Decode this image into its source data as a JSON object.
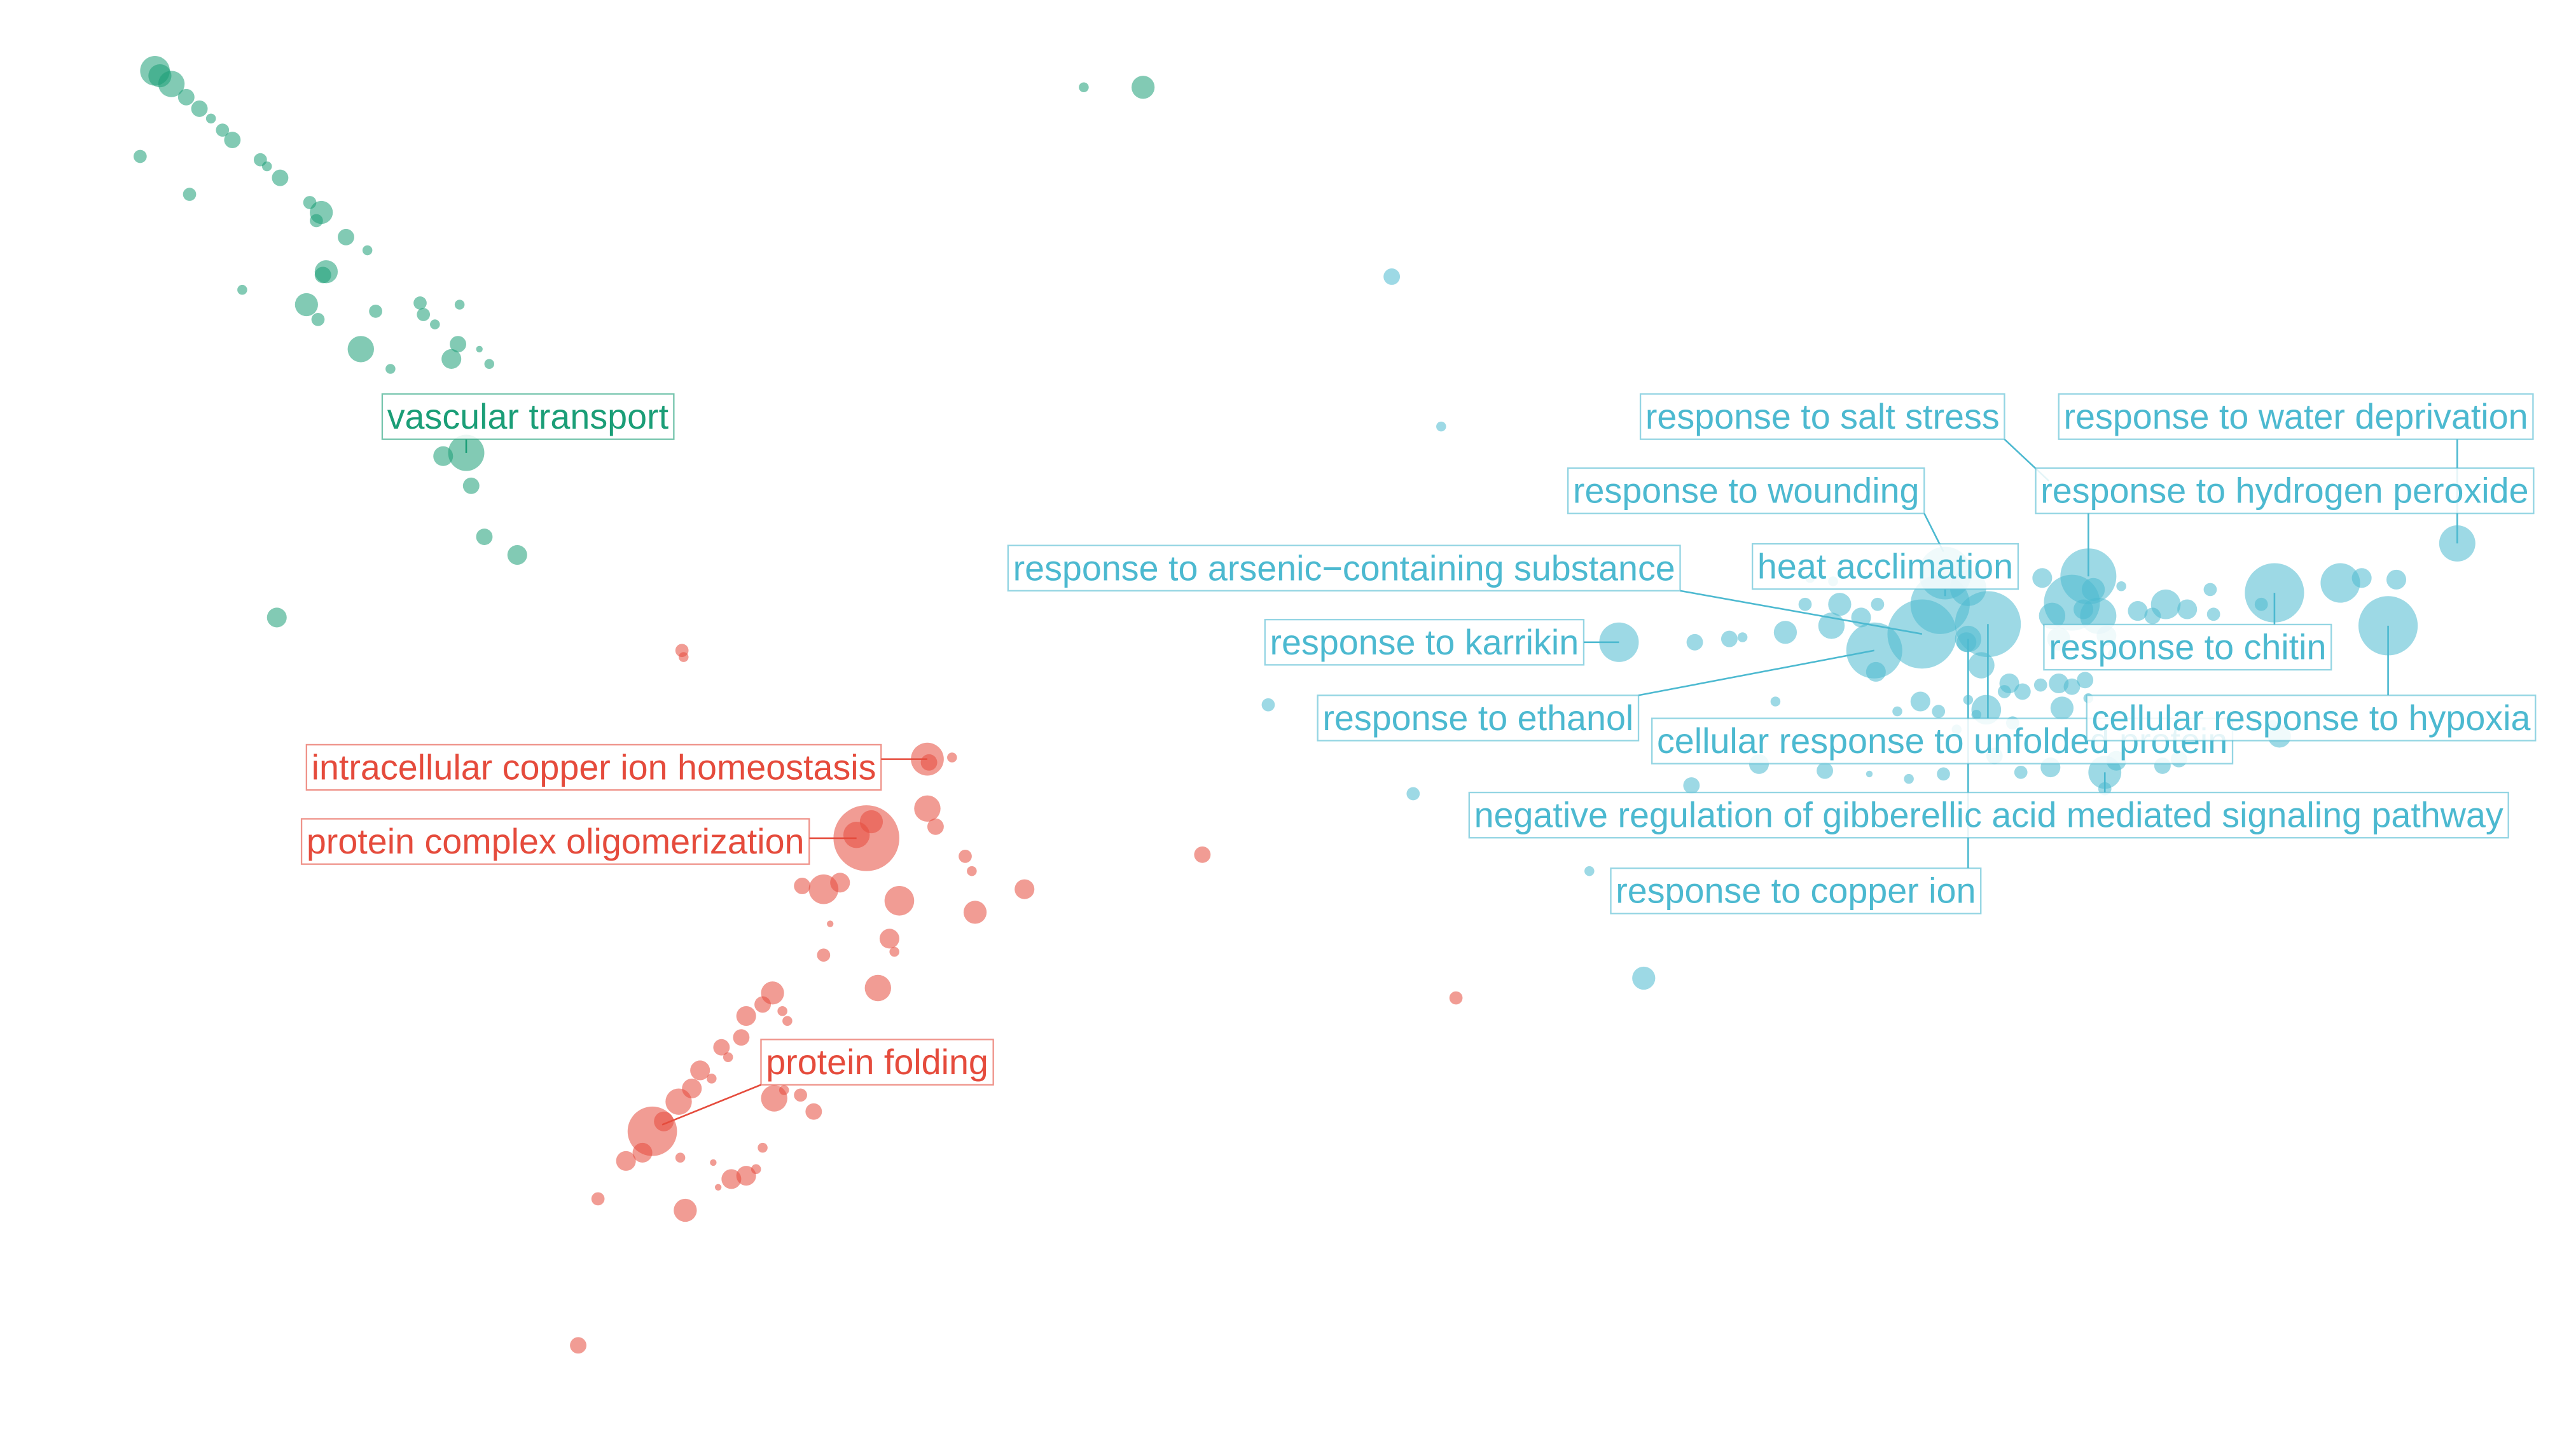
{
  "chart_data": {
    "type": "scatter",
    "title": "",
    "xlabel": "",
    "ylabel": "",
    "xlim": [
      0,
      1564
    ],
    "ylim": [
      0,
      869
    ],
    "grid": false,
    "legend": "none",
    "colors": {
      "green": "#1b9e77",
      "red": "#e54b3c",
      "blue": "#4cb9d0"
    },
    "series": [
      {
        "color": "#1b9e77",
        "points": [
          [
            94,
            43,
            9
          ],
          [
            97,
            46,
            7
          ],
          [
            104,
            51,
            8
          ],
          [
            113,
            59,
            5
          ],
          [
            121,
            66,
            5
          ],
          [
            128,
            72,
            3
          ],
          [
            135,
            79,
            4
          ],
          [
            141,
            85,
            5
          ],
          [
            85,
            95,
            4
          ],
          [
            158,
            97,
            4
          ],
          [
            162,
            101,
            3
          ],
          [
            170,
            108,
            5
          ],
          [
            115,
            118,
            4
          ],
          [
            188,
            123,
            4
          ],
          [
            195,
            129,
            7
          ],
          [
            192,
            134,
            4
          ],
          [
            210,
            144,
            5
          ],
          [
            223,
            152,
            3
          ],
          [
            198,
            165,
            7
          ],
          [
            196,
            167,
            5
          ],
          [
            147,
            176,
            3
          ],
          [
            186,
            185,
            7
          ],
          [
            193,
            194,
            4
          ],
          [
            228,
            189,
            4
          ],
          [
            255,
            184,
            4
          ],
          [
            257,
            191,
            4
          ],
          [
            279,
            185,
            3
          ],
          [
            264,
            197,
            3
          ],
          [
            219,
            212,
            8
          ],
          [
            237,
            224,
            3
          ],
          [
            278,
            209,
            5
          ],
          [
            291,
            212,
            2
          ],
          [
            297,
            221,
            3
          ],
          [
            274,
            218,
            6
          ],
          [
            269,
            277,
            6
          ],
          [
            283,
            275,
            11
          ],
          [
            286,
            295,
            5
          ],
          [
            294,
            326,
            5
          ],
          [
            314,
            337,
            6
          ],
          [
            168,
            375,
            6
          ],
          [
            658,
            53,
            3
          ],
          [
            694,
            53,
            7
          ]
        ],
        "labels": [
          {
            "text": "vascular transport",
            "lx": 235,
            "ly": 253,
            "px": 283,
            "py": 275
          }
        ]
      },
      {
        "color": "#e54b3c",
        "points": [
          [
            414,
            395,
            4
          ],
          [
            563,
            461,
            10
          ],
          [
            564,
            463,
            5
          ],
          [
            578,
            460,
            3
          ],
          [
            526,
            509,
            20
          ],
          [
            520,
            507,
            8
          ],
          [
            529,
            499,
            7
          ],
          [
            563,
            491,
            8
          ],
          [
            568,
            502,
            5
          ],
          [
            586,
            520,
            4
          ],
          [
            590,
            529,
            3
          ],
          [
            500,
            540,
            9
          ],
          [
            487,
            538,
            5
          ],
          [
            510,
            536,
            6
          ],
          [
            546,
            547,
            9
          ],
          [
            592,
            554,
            7
          ],
          [
            622,
            540,
            6
          ],
          [
            730,
            519,
            5
          ],
          [
            540,
            570,
            6
          ],
          [
            543,
            578,
            3
          ],
          [
            504,
            561,
            2
          ],
          [
            500,
            580,
            4
          ],
          [
            533,
            600,
            8
          ],
          [
            469,
            603,
            7
          ],
          [
            463,
            610,
            5
          ],
          [
            475,
            614,
            3
          ],
          [
            478,
            620,
            3
          ],
          [
            453,
            617,
            6
          ],
          [
            450,
            630,
            5
          ],
          [
            438,
            636,
            5
          ],
          [
            442,
            642,
            3
          ],
          [
            425,
            650,
            6
          ],
          [
            432,
            655,
            3
          ],
          [
            420,
            661,
            6
          ],
          [
            412,
            669,
            8
          ],
          [
            470,
            667,
            8
          ],
          [
            476,
            662,
            3
          ],
          [
            486,
            665,
            4
          ],
          [
            494,
            675,
            5
          ],
          [
            396,
            687,
            15
          ],
          [
            403,
            681,
            6
          ],
          [
            390,
            700,
            6
          ],
          [
            380,
            705,
            6
          ],
          [
            413,
            703,
            3
          ],
          [
            463,
            697,
            3
          ],
          [
            459,
            710,
            3
          ],
          [
            444,
            716,
            6
          ],
          [
            453,
            714,
            6
          ],
          [
            433,
            706,
            2
          ],
          [
            436,
            721,
            2
          ],
          [
            416,
            735,
            7
          ],
          [
            363,
            728,
            4
          ],
          [
            351,
            817,
            5
          ],
          [
            884,
            606,
            4
          ],
          [
            415,
            399,
            3
          ]
        ],
        "labels": [
          {
            "text": "intracellular copper ion homeostasis",
            "lx": 189,
            "ly": 466,
            "px": 563,
            "py": 461
          },
          {
            "text": "protein complex oligomerization",
            "lx": 186,
            "ly": 511,
            "px": 520,
            "py": 509
          },
          {
            "text": "protein folding",
            "lx": 465,
            "ly": 645,
            "px": 402,
            "py": 683
          }
        ]
      },
      {
        "color": "#4cb9d0",
        "points": [
          [
            845,
            168,
            5
          ],
          [
            875,
            259,
            3
          ],
          [
            770,
            428,
            4
          ],
          [
            858,
            482,
            4
          ],
          [
            965,
            529,
            3
          ],
          [
            998,
            594,
            7
          ],
          [
            983,
            390,
            12
          ],
          [
            1029,
            390,
            5
          ],
          [
            1050,
            388,
            5
          ],
          [
            1058,
            387,
            3
          ],
          [
            1084,
            384,
            7
          ],
          [
            1078,
            426,
            3
          ],
          [
            1096,
            367,
            4
          ],
          [
            1099,
            351,
            3
          ],
          [
            1112,
            380,
            8
          ],
          [
            1117,
            367,
            7
          ],
          [
            1113,
            353,
            3
          ],
          [
            1130,
            375,
            6
          ],
          [
            1138,
            395,
            17
          ],
          [
            1139,
            408,
            6
          ],
          [
            1140,
            367,
            4
          ],
          [
            1167,
            385,
            21
          ],
          [
            1178,
            367,
            18
          ],
          [
            1181,
            348,
            16
          ],
          [
            1195,
            357,
            11
          ],
          [
            1207,
            379,
            20
          ],
          [
            1195,
            388,
            8
          ],
          [
            1203,
            404,
            8
          ],
          [
            1194,
            390,
            6
          ],
          [
            1166,
            426,
            6
          ],
          [
            1152,
            432,
            3
          ],
          [
            1177,
            432,
            4
          ],
          [
            1206,
            431,
            9
          ],
          [
            1217,
            420,
            4
          ],
          [
            1220,
            415,
            6
          ],
          [
            1188,
            443,
            3
          ],
          [
            1200,
            434,
            3
          ],
          [
            1228,
            420,
            5
          ],
          [
            1239,
            416,
            4
          ],
          [
            1250,
            415,
            6
          ],
          [
            1266,
            413,
            5
          ],
          [
            1268,
            424,
            3
          ],
          [
            1258,
            417,
            5
          ],
          [
            1252,
            430,
            7
          ],
          [
            1240,
            351,
            6
          ],
          [
            1246,
            374,
            8
          ],
          [
            1250,
            388,
            7
          ],
          [
            1258,
            366,
            17
          ],
          [
            1268,
            350,
            17
          ],
          [
            1271,
            358,
            7
          ],
          [
            1265,
            370,
            6
          ],
          [
            1274,
            374,
            11
          ],
          [
            1279,
            386,
            6
          ],
          [
            1283,
            397,
            3
          ],
          [
            1288,
            356,
            3
          ],
          [
            1298,
            371,
            6
          ],
          [
            1307,
            374,
            5
          ],
          [
            1315,
            367,
            9
          ],
          [
            1328,
            370,
            6
          ],
          [
            1342,
            358,
            4
          ],
          [
            1344,
            373,
            4
          ],
          [
            1381,
            360,
            18
          ],
          [
            1373,
            367,
            4
          ],
          [
            1421,
            354,
            12
          ],
          [
            1434,
            351,
            6
          ],
          [
            1455,
            352,
            6
          ],
          [
            1450,
            380,
            18
          ],
          [
            1492,
            330,
            11
          ],
          [
            1384,
            447,
            7
          ],
          [
            1380,
            440,
            3
          ],
          [
            1278,
            469,
            10
          ],
          [
            1285,
            462,
            6
          ],
          [
            1278,
            479,
            4
          ],
          [
            1313,
            465,
            5
          ],
          [
            1323,
            461,
            5
          ],
          [
            1245,
            466,
            6
          ],
          [
            1227,
            469,
            4
          ],
          [
            1211,
            459,
            5
          ],
          [
            1180,
            470,
            4
          ],
          [
            1159,
            473,
            3
          ],
          [
            1135,
            470,
            2
          ],
          [
            1108,
            468,
            5
          ],
          [
            1068,
            464,
            6
          ],
          [
            1027,
            477,
            5
          ],
          [
            1195,
            425,
            3
          ],
          [
            1222,
            439,
            4
          ]
        ],
        "labels": [
          {
            "text": "response to salt stress",
            "lx": 999,
            "ly": 253,
            "px": 1244,
            "py": 292
          },
          {
            "text": "response to water deprivation",
            "lx": 1253,
            "ly": 253,
            "px": 1492,
            "py": 330
          },
          {
            "text": "response to wounding",
            "lx": 955,
            "ly": 298,
            "px": 1180,
            "py": 335
          },
          {
            "text": "response to hydrogen peroxide",
            "lx": 1239,
            "ly": 298,
            "px": 1268,
            "py": 350
          },
          {
            "text": "response to arsenic−containing substance",
            "lx": 615,
            "ly": 345,
            "px": 1167,
            "py": 385
          },
          {
            "text": "heat acclimation",
            "lx": 1067,
            "ly": 344,
            "px": 1181,
            "py": 362
          },
          {
            "text": "response to karrikin",
            "lx": 771,
            "ly": 390,
            "px": 983,
            "py": 390
          },
          {
            "text": "response to chitin",
            "lx": 1244,
            "ly": 393,
            "px": 1381,
            "py": 360
          },
          {
            "text": "response to ethanol",
            "lx": 803,
            "ly": 436,
            "px": 1138,
            "py": 395
          },
          {
            "text": "cellular response to unfolded protein",
            "lx": 1006,
            "ly": 450,
            "px": 1207,
            "py": 379
          },
          {
            "text": "cellular response to hypoxia",
            "lx": 1270,
            "ly": 436,
            "px": 1450,
            "py": 380
          },
          {
            "text": "negative regulation of gibberellic acid mediated signaling pathway",
            "lx": 895,
            "ly": 495,
            "px": 1278,
            "py": 469
          },
          {
            "text": "response to copper ion",
            "lx": 981,
            "ly": 541,
            "px": 1195,
            "py": 388
          }
        ]
      }
    ]
  }
}
